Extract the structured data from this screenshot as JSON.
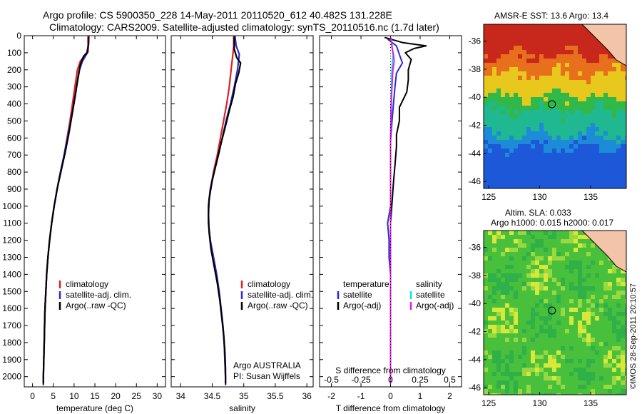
{
  "titles": {
    "line1": "Argo profile: CS 5900350_228 14-May-2011 20110520_612 40.482S 131.228E",
    "line2": "Climatology: CARS2009. Satellite-adjusted climatology: synTS_20110516.nc (1.7d later)"
  },
  "colors": {
    "climatology": "#e0201b",
    "satellite": "#2a2ad8",
    "argo": "#000000",
    "satellite_salinity": "#00e8e8",
    "argo_adj_salinity": "#e020e0"
  },
  "credits": {
    "org": "Argo AUSTRALIA",
    "pi": "PI: Susan Wijffels"
  },
  "legend": {
    "climatology": "climatology",
    "satellite_adj": "satellite-adj. clim.",
    "argo": "Argo(..raw -QC)",
    "hdr_temperature": "temperature",
    "hdr_salinity": "salinity",
    "satellite": "satellite",
    "argo_adj": "Argo(-adj)"
  },
  "map_titles": {
    "sst": "AMSR-E SST: 13.6 Argo: 13.4",
    "sla1": "Altim. SLA: 0.033",
    "sla2": "Argo h1000: 0.015 h2000: 0.017"
  },
  "timestamp": "©IMOS 28-Sep-2011 20:10:57",
  "chart_data": [
    {
      "type": "line",
      "xlabel": "temperature (deg C)",
      "ylabel": "",
      "xlim": [
        -2,
        32
      ],
      "ylim": [
        2060,
        0
      ],
      "x_ticks": [
        0,
        5,
        10,
        15,
        20,
        25,
        30
      ],
      "y_ticks": [
        0,
        100,
        200,
        300,
        400,
        500,
        600,
        700,
        800,
        900,
        1000,
        1100,
        1200,
        1300,
        1400,
        1500,
        1600,
        1700,
        1800,
        1900,
        2000
      ],
      "series": [
        {
          "name": "climatology",
          "color": "#e0201b",
          "points": [
            [
              13.6,
              0
            ],
            [
              13.5,
              50
            ],
            [
              13.0,
              100
            ],
            [
              11.5,
              150
            ],
            [
              10.8,
              200
            ],
            [
              10.2,
              300
            ],
            [
              9.6,
              400
            ],
            [
              9.0,
              500
            ],
            [
              8.3,
              600
            ],
            [
              7.6,
              700
            ],
            [
              6.7,
              800
            ],
            [
              5.9,
              900
            ],
            [
              5.2,
              1000
            ],
            [
              4.6,
              1100
            ],
            [
              4.1,
              1200
            ],
            [
              3.7,
              1300
            ],
            [
              3.4,
              1400
            ],
            [
              3.2,
              1500
            ],
            [
              3.0,
              1600
            ],
            [
              2.9,
              1700
            ],
            [
              2.8,
              1800
            ],
            [
              2.7,
              1900
            ],
            [
              2.6,
              2000
            ],
            [
              2.6,
              2050
            ]
          ]
        },
        {
          "name": "satellite-adj. clim.",
          "color": "#2a2ad8",
          "points": [
            [
              13.4,
              0
            ],
            [
              13.4,
              50
            ],
            [
              13.2,
              100
            ],
            [
              12.0,
              150
            ],
            [
              11.3,
              200
            ],
            [
              10.6,
              300
            ],
            [
              9.9,
              400
            ],
            [
              9.2,
              500
            ],
            [
              8.4,
              600
            ],
            [
              7.6,
              700
            ],
            [
              6.7,
              800
            ],
            [
              5.9,
              900
            ],
            [
              5.2,
              1000
            ],
            [
              4.6,
              1100
            ],
            [
              4.1,
              1200
            ],
            [
              3.7,
              1300
            ],
            [
              3.4,
              1400
            ],
            [
              3.2,
              1500
            ],
            [
              3.0,
              1600
            ],
            [
              2.9,
              1700
            ],
            [
              2.8,
              1800
            ],
            [
              2.7,
              1900
            ],
            [
              2.6,
              2000
            ],
            [
              2.6,
              2050
            ]
          ]
        },
        {
          "name": "Argo(..raw -QC)",
          "color": "#000000",
          "points": [
            [
              13.4,
              5
            ],
            [
              13.4,
              60
            ],
            [
              13.3,
              95
            ],
            [
              12.3,
              120
            ],
            [
              11.5,
              170
            ],
            [
              10.9,
              250
            ],
            [
              10.3,
              350
            ],
            [
              9.6,
              450
            ],
            [
              8.7,
              580
            ],
            [
              7.8,
              690
            ],
            [
              6.9,
              790
            ],
            [
              6.0,
              890
            ],
            [
              5.2,
              1000
            ],
            [
              4.6,
              1100
            ],
            [
              4.1,
              1200
            ],
            [
              3.7,
              1300
            ],
            [
              3.4,
              1400
            ],
            [
              3.2,
              1500
            ],
            [
              3.0,
              1600
            ],
            [
              2.9,
              1700
            ],
            [
              2.8,
              1800
            ],
            [
              2.7,
              1900
            ],
            [
              2.6,
              2000
            ],
            [
              2.6,
              2040
            ]
          ]
        }
      ]
    },
    {
      "type": "line",
      "xlabel": "salinity",
      "ylabel": "",
      "xlim": [
        33.85,
        36.1
      ],
      "ylim": [
        2060,
        0
      ],
      "x_ticks": [
        34,
        34.5,
        35,
        35.5,
        36
      ],
      "series": [
        {
          "name": "climatology",
          "color": "#e0201b",
          "points": [
            [
              34.84,
              0
            ],
            [
              34.84,
              60
            ],
            [
              34.83,
              100
            ],
            [
              34.8,
              200
            ],
            [
              34.77,
              300
            ],
            [
              34.73,
              400
            ],
            [
              34.68,
              500
            ],
            [
              34.63,
              600
            ],
            [
              34.58,
              700
            ],
            [
              34.52,
              800
            ],
            [
              34.47,
              900
            ],
            [
              34.44,
              1000
            ],
            [
              34.44,
              1100
            ],
            [
              34.47,
              1200
            ],
            [
              34.52,
              1300
            ],
            [
              34.57,
              1400
            ],
            [
              34.61,
              1500
            ],
            [
              34.64,
              1600
            ],
            [
              34.67,
              1700
            ],
            [
              34.69,
              1800
            ],
            [
              34.7,
              1900
            ],
            [
              34.71,
              2000
            ],
            [
              34.71,
              2050
            ]
          ]
        },
        {
          "name": "satellite-adj. clim.",
          "color": "#2a2ad8",
          "points": [
            [
              34.86,
              0
            ],
            [
              34.88,
              60
            ],
            [
              34.93,
              110
            ],
            [
              34.9,
              200
            ],
            [
              34.85,
              300
            ],
            [
              34.79,
              400
            ],
            [
              34.72,
              500
            ],
            [
              34.66,
              600
            ],
            [
              34.6,
              700
            ],
            [
              34.53,
              800
            ],
            [
              34.47,
              900
            ],
            [
              34.44,
              1000
            ],
            [
              34.44,
              1100
            ],
            [
              34.47,
              1200
            ],
            [
              34.52,
              1300
            ],
            [
              34.57,
              1400
            ],
            [
              34.61,
              1500
            ],
            [
              34.64,
              1600
            ],
            [
              34.67,
              1700
            ],
            [
              34.69,
              1800
            ],
            [
              34.7,
              1900
            ],
            [
              34.71,
              2000
            ],
            [
              34.71,
              2050
            ]
          ]
        },
        {
          "name": "Argo(..raw -QC)",
          "color": "#000000",
          "points": [
            [
              34.85,
              5
            ],
            [
              34.85,
              80
            ],
            [
              34.89,
              130
            ],
            [
              34.95,
              160
            ],
            [
              34.92,
              220
            ],
            [
              34.87,
              280
            ],
            [
              34.83,
              360
            ],
            [
              34.77,
              440
            ],
            [
              34.71,
              530
            ],
            [
              34.64,
              630
            ],
            [
              34.57,
              740
            ],
            [
              34.5,
              850
            ],
            [
              34.45,
              960
            ],
            [
              34.44,
              1050
            ],
            [
              34.45,
              1150
            ],
            [
              34.48,
              1250
            ],
            [
              34.53,
              1350
            ],
            [
              34.58,
              1450
            ],
            [
              34.62,
              1550
            ],
            [
              34.65,
              1650
            ],
            [
              34.68,
              1750
            ],
            [
              34.7,
              1850
            ],
            [
              34.71,
              1950
            ],
            [
              34.71,
              2040
            ]
          ]
        }
      ]
    },
    {
      "type": "line",
      "xlabel": "T difference from climatology",
      "x2label": "S difference from climatology",
      "xlim": [
        -2.4,
        2.4
      ],
      "ylim": [
        2060,
        0
      ],
      "x_ticks": [
        -2,
        -1,
        0,
        1,
        2
      ],
      "x2_ticks": [
        -0.5,
        -0.25,
        0,
        0.25,
        0.5
      ],
      "series": [
        {
          "name": "temperature satellite",
          "color": "#2a2ad8",
          "points": [
            [
              -0.1,
              20
            ],
            [
              0.2,
              60
            ],
            [
              0.3,
              110
            ],
            [
              0.4,
              160
            ],
            [
              0.2,
              220
            ],
            [
              0.15,
              300
            ],
            [
              0.1,
              400
            ],
            [
              0.05,
              500
            ],
            [
              0.0,
              620
            ],
            [
              0.0,
              800
            ],
            [
              0.0,
              1000
            ],
            [
              -0.1,
              1100
            ],
            [
              -0.05,
              1200
            ],
            [
              -0.05,
              1300
            ],
            [
              0,
              1400
            ],
            [
              0,
              1500
            ],
            [
              0,
              1600
            ],
            [
              0,
              1700
            ],
            [
              0,
              1800
            ],
            [
              0,
              1900
            ],
            [
              0,
              2040
            ]
          ]
        },
        {
          "name": "temperature Argo(-adj)",
          "color": "#000000",
          "points": [
            [
              -0.2,
              10
            ],
            [
              0.4,
              40
            ],
            [
              1.2,
              60
            ],
            [
              0.8,
              75
            ],
            [
              0.5,
              100
            ],
            [
              0.7,
              140
            ],
            [
              0.6,
              200
            ],
            [
              0.6,
              260
            ],
            [
              0.55,
              330
            ],
            [
              0.3,
              420
            ],
            [
              0.3,
              500
            ],
            [
              0.2,
              580
            ],
            [
              0.2,
              650
            ],
            [
              0.15,
              760
            ],
            [
              0.1,
              860
            ],
            [
              0.05,
              980
            ],
            [
              0,
              1100
            ],
            [
              0.0,
              1200
            ],
            [
              0,
              1350
            ],
            [
              0,
              1500
            ],
            [
              0,
              1700
            ],
            [
              0,
              1900
            ],
            [
              0,
              2040
            ]
          ]
        },
        {
          "name": "salinity satellite",
          "color": "#00e8e8",
          "points": [
            [
              0.02,
              20
            ],
            [
              0.05,
              60
            ],
            [
              0.08,
              110
            ],
            [
              0.06,
              160
            ],
            [
              0.04,
              220
            ],
            [
              0.03,
              300
            ],
            [
              0.02,
              400
            ],
            [
              0.01,
              500
            ],
            [
              0.0,
              620
            ],
            [
              0,
              800
            ],
            [
              0,
              1000
            ],
            [
              0,
              1200
            ],
            [
              0,
              1400
            ],
            [
              0,
              1600
            ],
            [
              0,
              1800
            ],
            [
              0,
              2040
            ]
          ]
        },
        {
          "name": "salinity Argo(-adj)",
          "color": "#e020e0",
          "points": [
            [
              0.01,
              10
            ],
            [
              0.03,
              40
            ],
            [
              0.05,
              70
            ],
            [
              0.1,
              110
            ],
            [
              0.12,
              150
            ],
            [
              0.08,
              200
            ],
            [
              0.06,
              260
            ],
            [
              0.04,
              330
            ],
            [
              0.02,
              420
            ],
            [
              0.02,
              500
            ],
            [
              0.0,
              600
            ],
            [
              0.0,
              700
            ],
            [
              0,
              800
            ],
            [
              0,
              1000
            ],
            [
              0,
              1200
            ],
            [
              0,
              1400
            ],
            [
              0,
              1600
            ],
            [
              0,
              1800
            ],
            [
              0,
              2040
            ]
          ]
        }
      ]
    },
    {
      "type": "heatmap",
      "title": "AMSR-E SST: 13.6 Argo: 13.4",
      "xlim": [
        124.5,
        138.5
      ],
      "ylim": [
        -46.5,
        -34.8
      ],
      "x_ticks": [
        125,
        130,
        135
      ],
      "y_ticks": [
        -36,
        -38,
        -40,
        -42,
        -44,
        -46
      ],
      "argo_position": [
        131.2,
        -40.5
      ],
      "bands": [
        {
          "lat_to": -37.0,
          "color": "#c8281c"
        },
        {
          "lat_to": -38.3,
          "color": "#e8701c"
        },
        {
          "lat_to": -40.0,
          "color": "#e8c81c"
        },
        {
          "lat_to": -41.0,
          "color": "#30b848"
        },
        {
          "lat_to": -42.6,
          "color": "#20b890"
        },
        {
          "lat_to": -43.6,
          "color": "#1c8cd8"
        },
        {
          "lat_to": -46.5,
          "color": "#1c58d8"
        }
      ]
    },
    {
      "type": "heatmap",
      "title": "Altim. SLA: 0.033",
      "xlim": [
        124.5,
        138.5
      ],
      "ylim": [
        -46.5,
        -34.8
      ],
      "x_ticks": [
        125,
        130,
        135
      ],
      "y_ticks": [
        -36,
        -38,
        -40,
        -42,
        -44,
        -46
      ],
      "argo_position": [
        131.2,
        -40.5
      ],
      "base_color": "#48c03c"
    }
  ]
}
